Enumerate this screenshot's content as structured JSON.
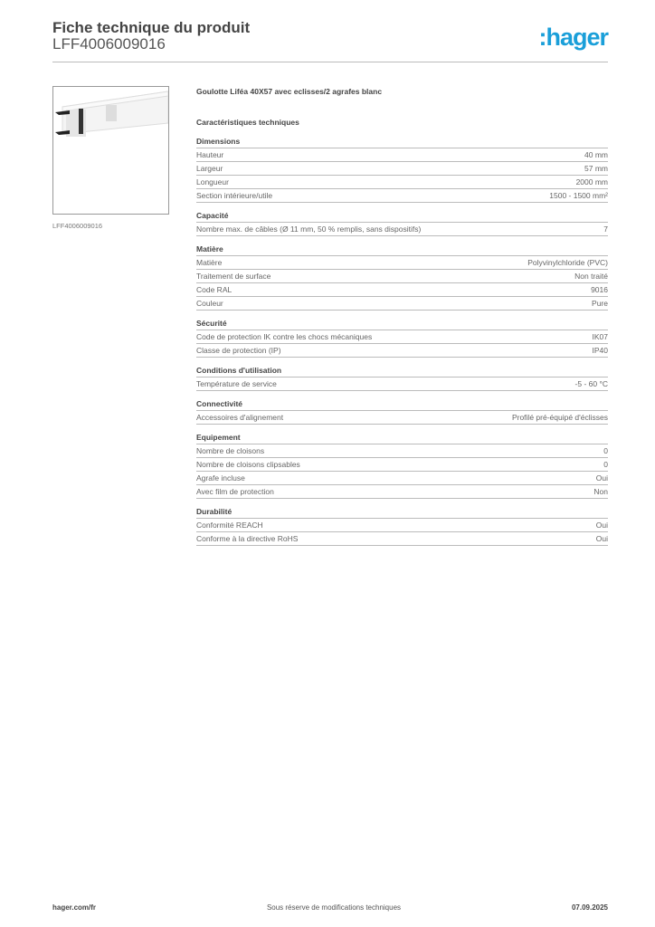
{
  "header": {
    "title": "Fiche technique du produit",
    "code": "LFF4006009016",
    "logo": ":hager"
  },
  "product": {
    "image_caption": "LFF4006009016",
    "name": "Goulotte Liféa 40X57 avec eclisses/2 agrafes blanc",
    "tech_heading": "Caractéristiques techniques"
  },
  "sections": [
    {
      "title": "Dimensions",
      "rows": [
        [
          "Hauteur",
          "40 mm"
        ],
        [
          "Largeur",
          "57 mm"
        ],
        [
          "Longueur",
          "2000 mm"
        ],
        [
          "Section intérieure/utile",
          "1500 - 1500 mm²"
        ]
      ]
    },
    {
      "title": "Capacité",
      "rows": [
        [
          "Nombre max. de câbles (Ø 11 mm, 50 % remplis, sans dispositifs)",
          "7"
        ]
      ]
    },
    {
      "title": "Matière",
      "rows": [
        [
          "Matière",
          "Polyvinylchloride (PVC)"
        ],
        [
          "Traitement de surface",
          "Non traité"
        ],
        [
          "Code RAL",
          "9016"
        ],
        [
          "Couleur",
          "Pure"
        ]
      ]
    },
    {
      "title": "Sécurité",
      "rows": [
        [
          "Code de protection IK contre les chocs mécaniques",
          "IK07"
        ],
        [
          "Classe de protection (IP)",
          "IP40"
        ]
      ]
    },
    {
      "title": "Conditions d'utilisation",
      "rows": [
        [
          "Température de service",
          "-5 - 60 °C"
        ]
      ]
    },
    {
      "title": "Connectivité",
      "rows": [
        [
          "Accessoires d'alignement",
          "Profilé pré-équipé d'éclisses"
        ]
      ]
    },
    {
      "title": "Equipement",
      "rows": [
        [
          "Nombre de cloisons",
          "0"
        ],
        [
          "Nombre de cloisons clipsables",
          "0"
        ],
        [
          "Agrafe incluse",
          "Oui"
        ],
        [
          "Avec film de protection",
          "Non"
        ]
      ]
    },
    {
      "title": "Durabilité",
      "rows": [
        [
          "Conformité REACH",
          "Oui"
        ],
        [
          "Conforme à la directive RoHS",
          "Oui"
        ]
      ]
    }
  ],
  "footer": {
    "site": "hager.com/fr",
    "note": "Sous réserve de modifications techniques",
    "date": "07.09.2025"
  },
  "colors": {
    "brand": "#1a9fd9"
  }
}
